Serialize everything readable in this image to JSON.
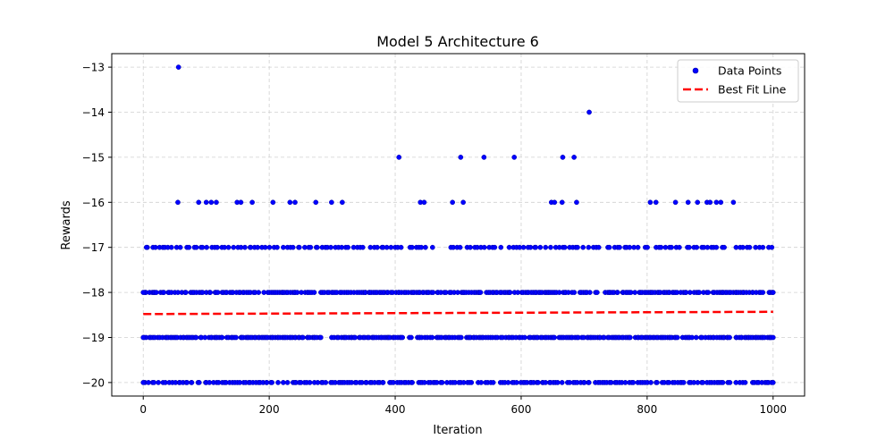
{
  "chart_data": {
    "type": "scatter",
    "title": "Model 5 Architecture 6",
    "xlabel": "Iteration",
    "ylabel": "Rewards",
    "xlim": [
      -50,
      1050
    ],
    "ylim": [
      -20.3,
      -12.7
    ],
    "x_ticks": [
      0,
      200,
      400,
      600,
      800,
      1000
    ],
    "x_tick_labels": [
      "0",
      "200",
      "400",
      "600",
      "800",
      "1000"
    ],
    "y_ticks": [
      -13,
      -14,
      -15,
      -16,
      -17,
      -18,
      -19,
      -20
    ],
    "y_tick_labels": [
      "−13",
      "−14",
      "−15",
      "−16",
      "−17",
      "−18",
      "−19",
      "−20"
    ],
    "grid": true,
    "legend_position": "top-right",
    "series": [
      {
        "name": "Data Points",
        "kind": "scatter",
        "color": "#0000ff",
        "points": [
          [
            56,
            -13
          ],
          [
            708,
            -14
          ],
          [
            406,
            -15
          ],
          [
            504,
            -15
          ],
          [
            541,
            -15
          ],
          [
            589,
            -15
          ],
          [
            666,
            -15
          ],
          [
            684,
            -15
          ],
          [
            55,
            -16
          ],
          [
            88,
            -16
          ],
          [
            100,
            -16
          ],
          [
            108,
            -16
          ],
          [
            116,
            -16
          ],
          [
            149,
            -16
          ],
          [
            155,
            -16
          ],
          [
            173,
            -16
          ],
          [
            206,
            -16
          ],
          [
            233,
            -16
          ],
          [
            241,
            -16
          ],
          [
            274,
            -16
          ],
          [
            299,
            -16
          ],
          [
            316,
            -16
          ],
          [
            440,
            -16
          ],
          [
            446,
            -16
          ],
          [
            491,
            -16
          ],
          [
            508,
            -16
          ],
          [
            648,
            -16
          ],
          [
            653,
            -16
          ],
          [
            665,
            -16
          ],
          [
            688,
            -16
          ],
          [
            805,
            -16
          ],
          [
            814,
            -16
          ],
          [
            845,
            -16
          ],
          [
            865,
            -16
          ],
          [
            880,
            -16
          ],
          [
            895,
            -16
          ],
          [
            900,
            -16
          ],
          [
            910,
            -16
          ],
          [
            917,
            -16
          ],
          [
            937,
            -16
          ]
        ],
        "dense_rows": [
          {
            "y": -17,
            "x_range": [
              5,
              998
            ],
            "count": 180
          },
          {
            "y": -18,
            "x_range": [
              0,
              1000
            ],
            "count": 340
          },
          {
            "y": -19,
            "x_range": [
              0,
              1000
            ],
            "count": 360
          },
          {
            "y": -20,
            "x_range": [
              0,
              1000
            ],
            "count": 260
          }
        ]
      },
      {
        "name": "Best Fit Line",
        "kind": "line",
        "color": "#ff0000",
        "style": "dashed",
        "x": [
          0,
          1000
        ],
        "y": [
          -18.48,
          -18.43
        ]
      }
    ]
  }
}
